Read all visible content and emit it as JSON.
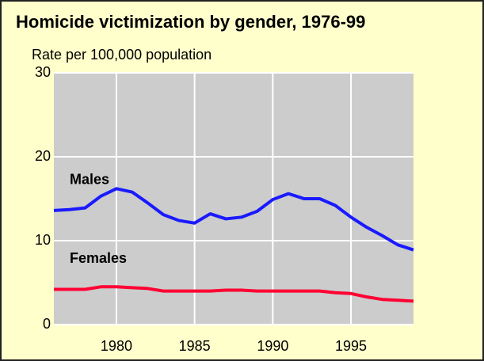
{
  "chart_data": {
    "type": "line",
    "title": "Homicide victimization by gender, 1976-99",
    "subtitle": "Rate per 100,000 population",
    "x": [
      1976,
      1977,
      1978,
      1979,
      1980,
      1981,
      1982,
      1983,
      1984,
      1985,
      1986,
      1987,
      1988,
      1989,
      1990,
      1991,
      1992,
      1993,
      1994,
      1995,
      1996,
      1997,
      1998,
      1999
    ],
    "series": [
      {
        "name": "Males",
        "color": "#1a1aff",
        "values": [
          13.6,
          13.7,
          13.9,
          15.3,
          16.2,
          15.8,
          14.5,
          13.1,
          12.4,
          12.1,
          13.2,
          12.6,
          12.8,
          13.5,
          14.9,
          15.6,
          15.0,
          15.0,
          14.2,
          12.8,
          11.6,
          10.6,
          9.5,
          8.9
        ]
      },
      {
        "name": "Females",
        "color": "#ff0033",
        "values": [
          4.2,
          4.2,
          4.2,
          4.5,
          4.5,
          4.4,
          4.3,
          4.0,
          4.0,
          4.0,
          4.0,
          4.1,
          4.1,
          4.0,
          4.0,
          4.0,
          4.0,
          4.0,
          3.8,
          3.7,
          3.3,
          3.0,
          2.9,
          2.8
        ]
      }
    ],
    "xlim": [
      1976,
      1999
    ],
    "xticks": [
      1980,
      1985,
      1990,
      1995
    ],
    "ylim": [
      0,
      30
    ],
    "yticks": [
      0,
      10,
      20,
      30
    ],
    "grid": true
  }
}
